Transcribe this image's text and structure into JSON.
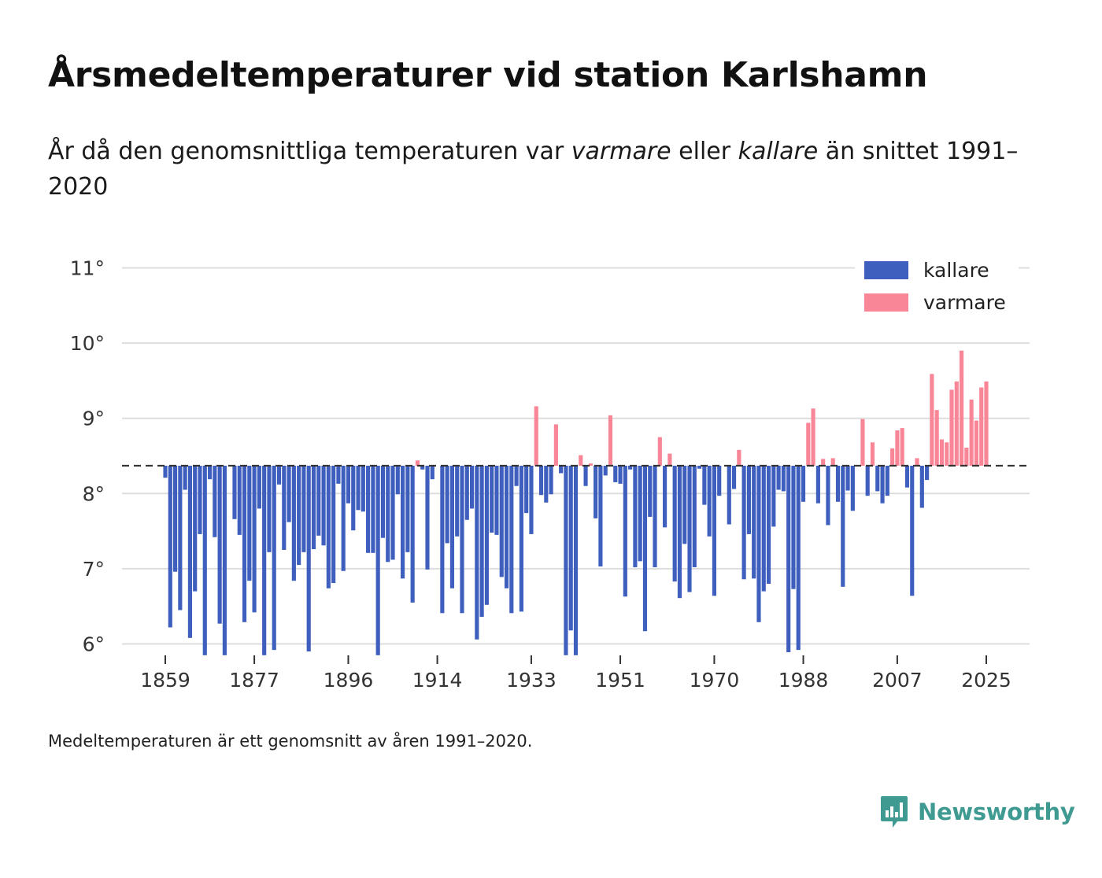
{
  "title": "Årsmedeltemperaturer vid station Karlshamn",
  "subtitle": {
    "part1": "År då den genomsnittliga temperaturen var ",
    "warm": "varmare",
    "part2": " eller ",
    "cold": "kallare",
    "part3": " än snittet 1991–2020"
  },
  "note": "Medeltemperaturen är ett genomsnitt av åren 1991–2020.",
  "brand": "Newsworthy",
  "colors": {
    "cold": "#3f5fbf",
    "warm": "#f88696",
    "grid": "#dddddd",
    "baseline": "#333333",
    "brand": "#3f9a92"
  },
  "chart_data": {
    "type": "bar",
    "title": "Årsmedeltemperaturer vid station Karlshamn",
    "baseline": 8.37,
    "ylim": [
      5.85,
      11.1
    ],
    "yticks": [
      6,
      7,
      8,
      9,
      10,
      11
    ],
    "ytick_labels": [
      "6°",
      "7°",
      "8°",
      "9°",
      "10°",
      "11°"
    ],
    "xlim": [
      1859,
      2025
    ],
    "xticks": [
      1859,
      1877,
      1896,
      1914,
      1933,
      1951,
      1970,
      1988,
      2007,
      2025
    ],
    "xtick_labels": [
      "1859",
      "1877",
      "1896",
      "1914",
      "1933",
      "1951",
      "1970",
      "1988",
      "2007",
      "2025"
    ],
    "legend": [
      {
        "label": "kallare",
        "color": "#3f5fbf"
      },
      {
        "label": "varmare",
        "color": "#f88696"
      }
    ],
    "legend_position": "top-right",
    "x_start": 1859,
    "values": [
      8.21,
      6.22,
      6.96,
      6.45,
      8.05,
      6.08,
      6.7,
      7.46,
      5.85,
      8.19,
      7.42,
      6.27,
      5.85,
      null,
      7.66,
      7.45,
      6.29,
      6.84,
      6.42,
      7.8,
      5.85,
      7.22,
      5.92,
      8.12,
      7.25,
      7.62,
      6.84,
      7.05,
      7.22,
      5.9,
      7.26,
      7.44,
      7.31,
      6.74,
      6.81,
      8.13,
      6.97,
      7.87,
      7.51,
      7.78,
      7.76,
      7.21,
      7.21,
      5.85,
      7.41,
      7.09,
      7.12,
      7.99,
      6.87,
      7.22,
      6.55,
      8.44,
      8.32,
      6.99,
      8.19,
      null,
      6.41,
      7.34,
      6.74,
      7.43,
      6.41,
      7.65,
      7.8,
      6.06,
      6.36,
      6.52,
      7.48,
      7.45,
      6.89,
      6.74,
      6.41,
      8.1,
      6.43,
      7.74,
      7.46,
      9.16,
      7.98,
      7.88,
      7.99,
      8.92,
      8.27,
      5.85,
      6.18,
      5.85,
      8.51,
      8.1,
      8.4,
      7.67,
      7.03,
      8.24,
      9.04,
      8.15,
      8.13,
      6.63,
      8.32,
      7.02,
      7.1,
      6.17,
      7.69,
      7.02,
      8.75,
      7.55,
      8.53,
      6.83,
      6.61,
      7.33,
      6.69,
      7.02,
      8.33,
      7.85,
      7.43,
      6.64,
      7.97,
      null,
      7.59,
      8.06,
      8.58,
      6.86,
      7.46,
      6.87,
      6.29,
      6.7,
      6.8,
      7.56,
      8.05,
      8.03,
      5.89,
      6.73,
      5.92,
      7.89,
      8.94,
      9.13,
      7.87,
      8.46,
      7.58,
      8.47,
      7.89,
      6.76,
      8.04,
      7.77,
      null,
      8.99,
      7.97,
      8.68,
      8.03,
      7.87,
      7.97,
      8.6,
      8.84,
      8.87,
      8.08,
      6.64,
      8.47,
      7.81,
      8.18,
      9.59,
      9.11,
      8.72,
      8.68,
      9.38,
      9.49,
      9.9,
      8.61,
      9.25,
      8.97,
      9.41,
      9.49
    ]
  }
}
